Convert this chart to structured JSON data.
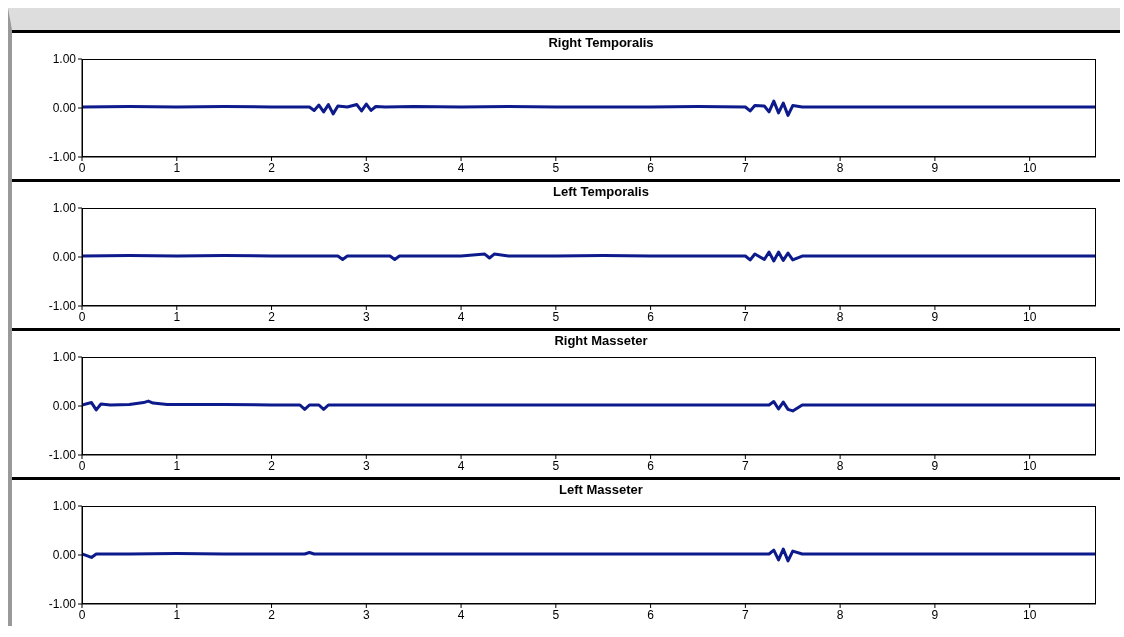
{
  "chart_data": [
    {
      "type": "line",
      "title": "Right Temporalis",
      "color": "#0d1a8c",
      "xlim": [
        0,
        10.7
      ],
      "xticks": [
        0,
        1,
        2,
        3,
        4,
        5,
        6,
        7,
        8,
        9,
        10
      ],
      "ylim": [
        -1,
        1
      ],
      "yticks": [
        {
          "value": 1,
          "label": "1.00"
        },
        {
          "value": 0,
          "label": "0.00"
        },
        {
          "value": -1,
          "label": "-1.00"
        }
      ],
      "x": [
        0,
        0.5,
        1,
        1.5,
        2,
        2.4,
        2.45,
        2.5,
        2.55,
        2.6,
        2.65,
        2.7,
        2.8,
        2.9,
        2.95,
        3.0,
        3.05,
        3.1,
        3.2,
        3.5,
        4,
        4.5,
        5,
        5.5,
        6,
        6.5,
        7,
        7.05,
        7.1,
        7.2,
        7.25,
        7.3,
        7.35,
        7.4,
        7.45,
        7.5,
        7.6,
        8,
        8.5,
        9,
        9.5,
        10,
        10.7
      ],
      "values": [
        0.02,
        0.03,
        0.02,
        0.03,
        0.02,
        0.02,
        -0.05,
        0.06,
        -0.08,
        0.07,
        -0.12,
        0.04,
        0.02,
        0.07,
        -0.06,
        0.08,
        -0.05,
        0.03,
        0.02,
        0.03,
        0.02,
        0.03,
        0.02,
        0.02,
        0.02,
        0.03,
        0.02,
        -0.06,
        0.05,
        0.04,
        -0.08,
        0.14,
        -0.1,
        0.1,
        -0.15,
        0.05,
        0.02,
        0.02,
        0.02,
        0.02,
        0.02,
        0.02,
        0.02
      ]
    },
    {
      "type": "line",
      "title": "Left Temporalis",
      "color": "#0d1a8c",
      "xlim": [
        0,
        10.7
      ],
      "xticks": [
        0,
        1,
        2,
        3,
        4,
        5,
        6,
        7,
        8,
        9,
        10
      ],
      "ylim": [
        -1,
        1
      ],
      "yticks": [
        {
          "value": 1,
          "label": "1.00"
        },
        {
          "value": 0,
          "label": "0.00"
        },
        {
          "value": -1,
          "label": "-1.00"
        }
      ],
      "x": [
        0,
        0.5,
        1,
        1.5,
        2,
        2.5,
        2.7,
        2.75,
        2.8,
        3,
        3.25,
        3.3,
        3.35,
        3.5,
        4,
        4.25,
        4.3,
        4.35,
        4.5,
        5,
        5.5,
        6,
        6.5,
        7,
        7.05,
        7.1,
        7.2,
        7.25,
        7.3,
        7.35,
        7.4,
        7.45,
        7.5,
        7.6,
        8,
        8.5,
        9,
        9.5,
        10,
        10.7
      ],
      "values": [
        0.02,
        0.03,
        0.02,
        0.03,
        0.02,
        0.02,
        0.02,
        -0.05,
        0.02,
        0.02,
        0.02,
        -0.05,
        0.02,
        0.02,
        0.02,
        0.06,
        -0.02,
        0.06,
        0.02,
        0.02,
        0.03,
        0.02,
        0.02,
        0.02,
        -0.06,
        0.06,
        -0.05,
        0.1,
        -0.08,
        0.1,
        -0.07,
        0.08,
        -0.06,
        0.02,
        0.02,
        0.02,
        0.02,
        0.02,
        0.02,
        0.02
      ]
    },
    {
      "type": "line",
      "title": "Right Masseter",
      "color": "#0d1a8c",
      "xlim": [
        0,
        10.7
      ],
      "xticks": [
        0,
        1,
        2,
        3,
        4,
        5,
        6,
        7,
        8,
        9,
        10
      ],
      "ylim": [
        -1,
        1
      ],
      "yticks": [
        {
          "value": 1,
          "label": "1.00"
        },
        {
          "value": 0,
          "label": "0.00"
        },
        {
          "value": -1,
          "label": "-1.00"
        }
      ],
      "x": [
        0,
        0.1,
        0.15,
        0.2,
        0.3,
        0.5,
        0.65,
        0.7,
        0.75,
        0.9,
        1.5,
        2,
        2.3,
        2.35,
        2.4,
        2.5,
        2.55,
        2.6,
        3,
        3.5,
        4,
        4.5,
        5,
        5.5,
        6,
        6.5,
        7,
        7.25,
        7.3,
        7.35,
        7.4,
        7.45,
        7.5,
        7.6,
        8,
        8.5,
        9,
        9.5,
        10,
        10.7
      ],
      "values": [
        0.02,
        0.07,
        -0.08,
        0.04,
        0.02,
        0.03,
        0.07,
        0.1,
        0.06,
        0.03,
        0.03,
        0.02,
        0.02,
        -0.07,
        0.02,
        0.02,
        -0.07,
        0.02,
        0.02,
        0.02,
        0.02,
        0.02,
        0.02,
        0.02,
        0.02,
        0.02,
        0.02,
        0.02,
        0.09,
        -0.06,
        0.08,
        -0.07,
        -0.1,
        0.02,
        0.02,
        0.02,
        0.02,
        0.02,
        0.02,
        0.02
      ]
    },
    {
      "type": "line",
      "title": "Left Masseter",
      "color": "#0d1a8c",
      "xlim": [
        0,
        10.7
      ],
      "xticks": [
        0,
        1,
        2,
        3,
        4,
        5,
        6,
        7,
        8,
        9,
        10
      ],
      "ylim": [
        -1,
        1
      ],
      "yticks": [
        {
          "value": 1,
          "label": "1.00"
        },
        {
          "value": 0,
          "label": "0.00"
        },
        {
          "value": -1,
          "label": "-1.00"
        }
      ],
      "x": [
        0,
        0.1,
        0.15,
        0.2,
        0.5,
        1,
        1.5,
        2,
        2.35,
        2.4,
        2.45,
        2.5,
        3,
        3.5,
        4,
        4.5,
        5,
        5.5,
        6,
        6.5,
        7,
        7.25,
        7.3,
        7.35,
        7.4,
        7.45,
        7.5,
        7.6,
        8,
        8.5,
        9,
        9.5,
        10,
        10.7
      ],
      "values": [
        0.02,
        -0.05,
        0.02,
        0.02,
        0.02,
        0.03,
        0.02,
        0.02,
        0.02,
        0.05,
        0.02,
        0.02,
        0.02,
        0.02,
        0.02,
        0.02,
        0.02,
        0.02,
        0.02,
        0.02,
        0.02,
        0.02,
        0.1,
        -0.1,
        0.12,
        -0.12,
        0.08,
        0.02,
        0.02,
        0.02,
        0.02,
        0.02,
        0.02,
        0.02
      ]
    }
  ]
}
